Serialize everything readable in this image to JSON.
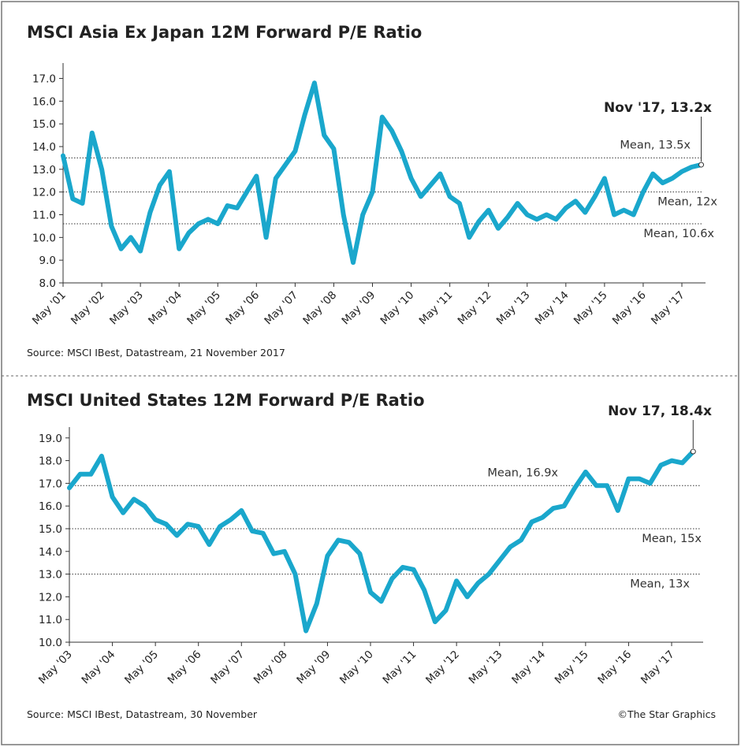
{
  "chart_data": [
    {
      "type": "line",
      "title": "MSCI Asia Ex Japan 12M Forward P/E Ratio",
      "color": "#1aa7cc",
      "categories": [
        "May '01",
        null,
        null,
        null,
        "May '02",
        null,
        null,
        null,
        "May '03",
        null,
        null,
        null,
        "May '04",
        null,
        null,
        null,
        "May '05",
        null,
        null,
        null,
        "May '06",
        null,
        null,
        null,
        "May '07",
        null,
        null,
        null,
        "May '08",
        null,
        null,
        null,
        "May '09",
        null,
        null,
        null,
        "May '10",
        null,
        null,
        null,
        "May '11",
        null,
        null,
        null,
        "May '12",
        null,
        null,
        null,
        "May '13",
        null,
        null,
        null,
        "May '14",
        null,
        null,
        null,
        "May '15",
        null,
        null,
        null,
        "May '16",
        null,
        null,
        null,
        "May '17",
        null,
        null
      ],
      "values": [
        13.6,
        11.7,
        11.5,
        14.6,
        13.0,
        10.5,
        9.5,
        10.0,
        9.4,
        11.1,
        12.3,
        12.9,
        9.5,
        10.2,
        10.6,
        10.8,
        10.6,
        11.4,
        11.3,
        12.0,
        12.7,
        10.0,
        12.6,
        13.2,
        13.8,
        15.4,
        16.8,
        14.5,
        13.9,
        11.0,
        8.9,
        11.0,
        12.0,
        15.3,
        14.7,
        13.8,
        12.6,
        11.8,
        12.3,
        12.8,
        11.8,
        11.5,
        10.0,
        10.7,
        11.2,
        10.4,
        10.9,
        11.5,
        11.0,
        10.8,
        11.0,
        10.8,
        11.3,
        11.6,
        11.1,
        11.8,
        12.6,
        11.0,
        11.2,
        11.0,
        12.0,
        12.8,
        12.4,
        12.6,
        12.9,
        13.1,
        13.2
      ],
      "ylim": [
        8,
        17.4
      ],
      "yticks": [
        {
          "value": 8,
          "label": "8.0"
        },
        {
          "value": 9,
          "label": "9.0"
        },
        {
          "value": 10,
          "label": "10.0"
        },
        {
          "value": 11,
          "label": "11.0"
        },
        {
          "value": 12,
          "label": "12.0"
        },
        {
          "value": 13,
          "label": "13.0"
        },
        {
          "value": 14,
          "label": "14.0"
        },
        {
          "value": 15,
          "label": "15.0"
        },
        {
          "value": 16,
          "label": "16.0"
        },
        {
          "value": 17,
          "label": "17.0"
        }
      ],
      "mean_lines": [
        {
          "value": 13.5,
          "label": "Mean, 13.5x"
        },
        {
          "value": 12,
          "label": "Mean, 12x"
        },
        {
          "value": 10.6,
          "label": "Mean, 10.6x"
        }
      ],
      "annotation": "Nov '17, 13.2x",
      "source": "Source: MSCI IBest, Datastream, 21 November 2017"
    },
    {
      "type": "line",
      "title": "MSCI United States 12M Forward P/E Ratio",
      "color": "#1aa7cc",
      "categories": [
        "May '03",
        null,
        null,
        null,
        "May '04",
        null,
        null,
        null,
        "May '05",
        null,
        null,
        null,
        "May '06",
        null,
        null,
        null,
        "May '07",
        null,
        null,
        null,
        "May '08",
        null,
        null,
        null,
        "May '09",
        null,
        null,
        null,
        "May '10",
        null,
        null,
        null,
        "May '11",
        null,
        null,
        null,
        "May '12",
        null,
        null,
        null,
        "May '13",
        null,
        null,
        null,
        "May '14",
        null,
        null,
        null,
        "May '15",
        null,
        null,
        null,
        "May '16",
        null,
        null,
        null,
        "May '17",
        null,
        null
      ],
      "values": [
        16.8,
        17.4,
        17.4,
        18.2,
        16.4,
        15.7,
        16.3,
        16.0,
        15.4,
        15.2,
        14.7,
        15.2,
        15.1,
        14.3,
        15.1,
        15.4,
        15.8,
        14.9,
        14.8,
        13.9,
        14.0,
        13.0,
        10.5,
        11.7,
        13.8,
        14.5,
        14.4,
        13.9,
        12.2,
        11.8,
        12.8,
        13.3,
        13.2,
        12.3,
        10.9,
        11.4,
        12.7,
        12.0,
        12.6,
        13.0,
        13.6,
        14.2,
        14.5,
        15.3,
        15.5,
        15.9,
        16.0,
        16.8,
        17.5,
        16.9,
        16.9,
        15.8,
        17.2,
        17.2,
        17.0,
        17.8,
        18.0,
        17.9,
        18.4
      ],
      "ylim": [
        10,
        19.2
      ],
      "yticks": [
        {
          "value": 10,
          "label": "10.0"
        },
        {
          "value": 11,
          "label": "11.0"
        },
        {
          "value": 12,
          "label": "12.0"
        },
        {
          "value": 13,
          "label": "13.0"
        },
        {
          "value": 14,
          "label": "14.0"
        },
        {
          "value": 15,
          "label": "15.0"
        },
        {
          "value": 16,
          "label": "16.0"
        },
        {
          "value": 17,
          "label": "17.0"
        },
        {
          "value": 18,
          "label": "18.0"
        },
        {
          "value": 19,
          "label": "19.0"
        }
      ],
      "mean_lines": [
        {
          "value": 16.9,
          "label": "Mean, 16.9x"
        },
        {
          "value": 15,
          "label": "Mean, 15x"
        },
        {
          "value": 13,
          "label": "Mean, 13x"
        }
      ],
      "annotation": "Nov 17, 18.4x",
      "source": "Source: MSCI IBest, Datastream, 30 November",
      "credit": "©The Star Graphics"
    }
  ]
}
